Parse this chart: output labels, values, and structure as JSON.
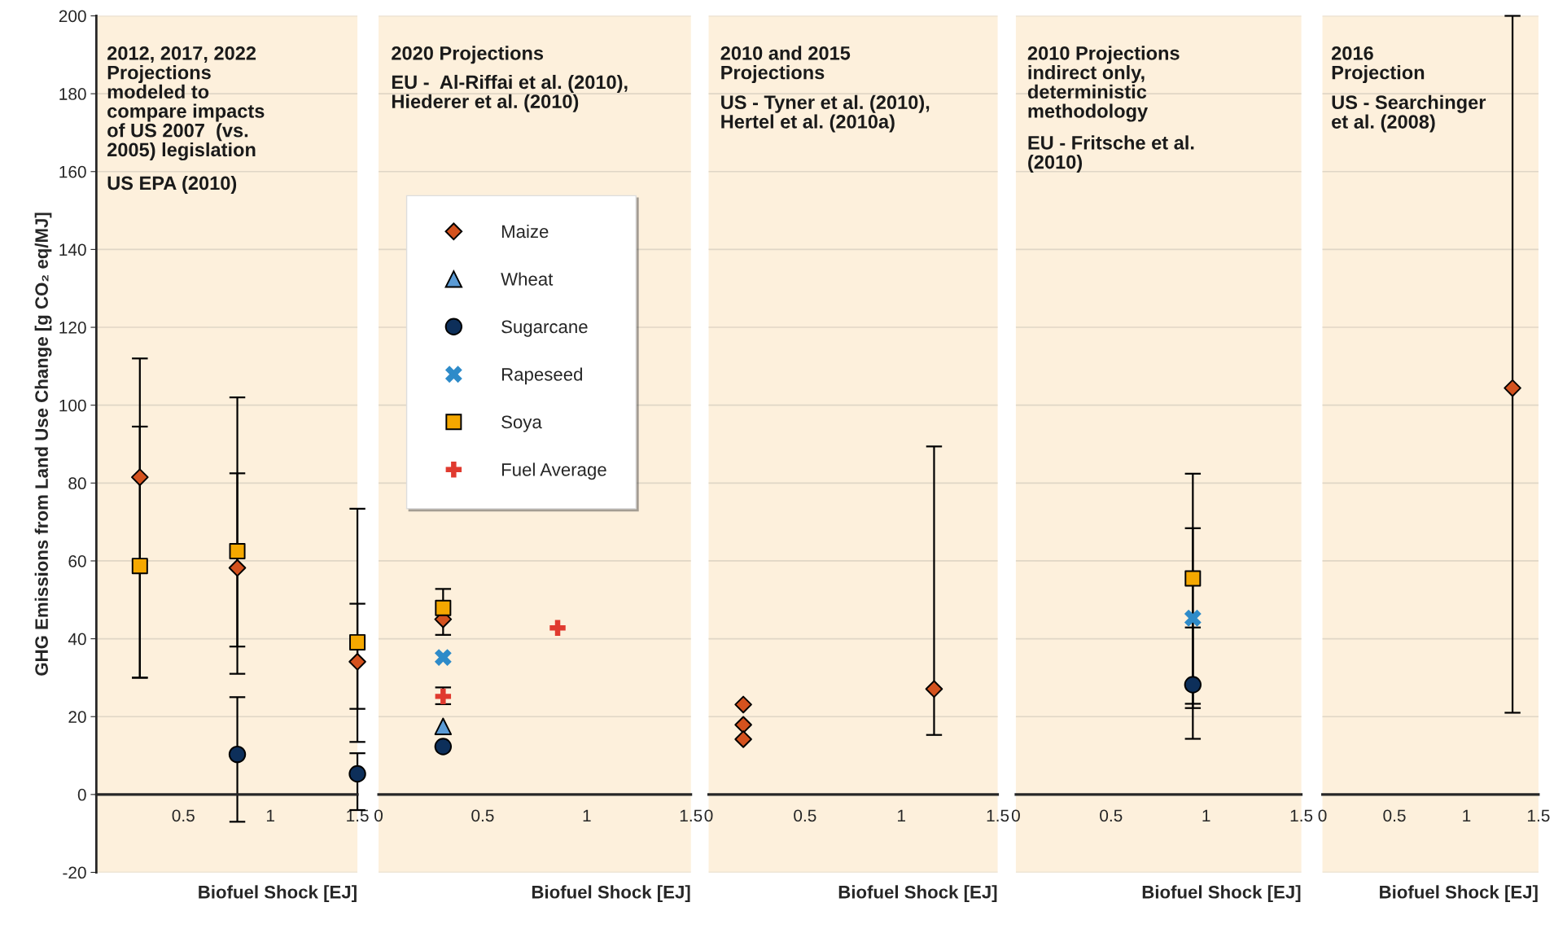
{
  "chart_data": [
    {
      "type": "scatter",
      "ylabel": "GHG Emissions from Land Use Change [g CO₂ eq/MJ]",
      "xlabel": "Biofuel Shock [EJ]",
      "annotations": [
        "2012, 2017, 2022\nProjections\nmodeled to\ncompare impacts\nof US 2007  (vs.\n2005) legislation",
        "US EPA (2010)"
      ],
      "xlim": [
        0,
        1.5
      ],
      "xticks": [
        0.5,
        1,
        1.5
      ],
      "ylim": [
        -20,
        200
      ],
      "yticks": [
        -20,
        0,
        20,
        40,
        60,
        80,
        100,
        120,
        140,
        160,
        180,
        200
      ],
      "grid": "y",
      "legend": false,
      "series": [
        {
          "color": "#d4521e",
          "marker": "diamond",
          "x": [
            0.25,
            0.81,
            1.5
          ],
          "values": [
            81.5,
            58.2,
            34.1
          ],
          "errors": [
            [
              30,
              112
            ],
            [
              38,
              82.5
            ],
            [
              22,
              49
            ]
          ]
        },
        {
          "color": "#f5a800",
          "marker": "square",
          "x": [
            0.25,
            0.81,
            1.5
          ],
          "values": [
            58.7,
            62.5,
            39.1
          ],
          "errors": [
            [
              30,
              94.5
            ],
            [
              31,
              102
            ],
            [
              13.5,
              73.4
            ]
          ]
        },
        {
          "color": "#0d2f5a",
          "marker": "circle",
          "x": [
            0.81,
            1.5
          ],
          "values": [
            10.3,
            5.3
          ],
          "errors": [
            [
              -7,
              25
            ],
            [
              -4,
              10.6
            ]
          ]
        }
      ]
    },
    {
      "type": "scatter",
      "xlabel": "Biofuel Shock [EJ]",
      "annotations": [
        "2020 Projections",
        "EU -  Al-Riffai et al. (2010),\nHiederer et al. (2010)"
      ],
      "xlim": [
        0,
        1.5
      ],
      "xticks": [
        0,
        0.5,
        1,
        1.5
      ],
      "ylim": [
        -20,
        200
      ],
      "yticks": [
        -20,
        0,
        20,
        40,
        60,
        80,
        100,
        120,
        140,
        160,
        180,
        200
      ],
      "tick_labels": "x",
      "grid": "y",
      "legend": "top left",
      "series": [
        {
          "name": "Maize",
          "color": "#d4521e",
          "marker": "diamond",
          "x": [
            0.31
          ],
          "values": [
            45
          ]
        },
        {
          "name": "Wheat",
          "color": "#5b9bd5",
          "marker": "triangle",
          "x": [
            0.31
          ],
          "values": [
            17.5
          ]
        },
        {
          "name": "Sugarcane",
          "color": "#0d2f5a",
          "marker": "circle",
          "x": [
            0.31
          ],
          "values": [
            12.3
          ]
        },
        {
          "name": "Rapeseed",
          "color": "#2e8bc9",
          "marker": "cross",
          "x": [
            0.31
          ],
          "values": [
            35.2
          ]
        },
        {
          "name": "Soya",
          "color": "#f5a800",
          "marker": "square",
          "x": [
            0.31
          ],
          "values": [
            47.9
          ],
          "errors": [
            [
              41,
              52.8
            ]
          ]
        },
        {
          "name": "Fuel Average",
          "color": "#e03a2f",
          "marker": "plus",
          "x": [
            0.31,
            0.86
          ],
          "values": [
            25.2,
            42.8
          ],
          "errors": [
            [
              23.2,
              27.5
            ],
            null
          ]
        }
      ]
    },
    {
      "type": "scatter",
      "xlabel": "Biofuel Shock [EJ]",
      "annotations": [
        "2010 and 2015\nProjections",
        "US - Tyner et al. (2010),\nHertel et al. (2010a)"
      ],
      "xlim": [
        0,
        1.5
      ],
      "xticks": [
        0,
        0.5,
        1,
        1.5
      ],
      "ylim": [
        -20,
        200
      ],
      "yticks": [
        -20,
        0,
        20,
        40,
        60,
        80,
        100,
        120,
        140,
        160,
        180,
        200
      ],
      "tick_labels": "x",
      "grid": "y",
      "legend": false,
      "series": [
        {
          "color": "#d4521e",
          "marker": "diamond",
          "x": [
            0.18,
            0.18,
            0.18,
            1.17
          ],
          "values": [
            23.1,
            17.9,
            14.2,
            27.1
          ],
          "errors": [
            null,
            null,
            null,
            [
              15.3,
              89.4
            ]
          ]
        }
      ]
    },
    {
      "type": "scatter",
      "xlabel": "Biofuel Shock [EJ]",
      "annotations": [
        "2010 Projections\nindirect only,\ndeterministic\nmethodology",
        "EU - Fritsche et al.\n(2010)"
      ],
      "xlim": [
        0,
        1.5
      ],
      "xticks": [
        0,
        0.5,
        1,
        1.5
      ],
      "ylim": [
        -20,
        200
      ],
      "yticks": [
        -20,
        0,
        20,
        40,
        60,
        80,
        100,
        120,
        140,
        160,
        180,
        200
      ],
      "tick_labels": "x",
      "grid": "y",
      "legend": false,
      "series": [
        {
          "color": "#f5a800",
          "marker": "square",
          "x": [
            0.93
          ],
          "values": [
            55.5
          ],
          "errors": [
            [
              14.3,
              82.4
            ]
          ]
        },
        {
          "color": "#2e8bc9",
          "marker": "cross",
          "x": [
            0.93
          ],
          "values": [
            45.3
          ],
          "errors": [
            [
              23.3,
              68.4
            ]
          ]
        },
        {
          "color": "#0d2f5a",
          "marker": "circle",
          "x": [
            0.93
          ],
          "values": [
            28.2
          ],
          "errors": [
            [
              22.2,
              42.9
            ]
          ]
        }
      ]
    },
    {
      "type": "scatter",
      "xlabel": "Biofuel Shock [EJ]",
      "annotations": [
        "2016\nProjection",
        "US - Searchinger\net al. (2008)"
      ],
      "xlim": [
        0,
        1.5
      ],
      "xticks": [
        0,
        0.5,
        1,
        1.5
      ],
      "ylim": [
        -20,
        200
      ],
      "yticks": [
        -20,
        0,
        20,
        40,
        60,
        80,
        100,
        120,
        140,
        160,
        180,
        200
      ],
      "tick_labels": "x",
      "grid": "y",
      "legend": false,
      "series": [
        {
          "color": "#d4521e",
          "marker": "diamond",
          "x": [
            1.32
          ],
          "values": [
            104.4
          ],
          "errors": [
            [
              21,
              200
            ]
          ]
        }
      ]
    }
  ]
}
